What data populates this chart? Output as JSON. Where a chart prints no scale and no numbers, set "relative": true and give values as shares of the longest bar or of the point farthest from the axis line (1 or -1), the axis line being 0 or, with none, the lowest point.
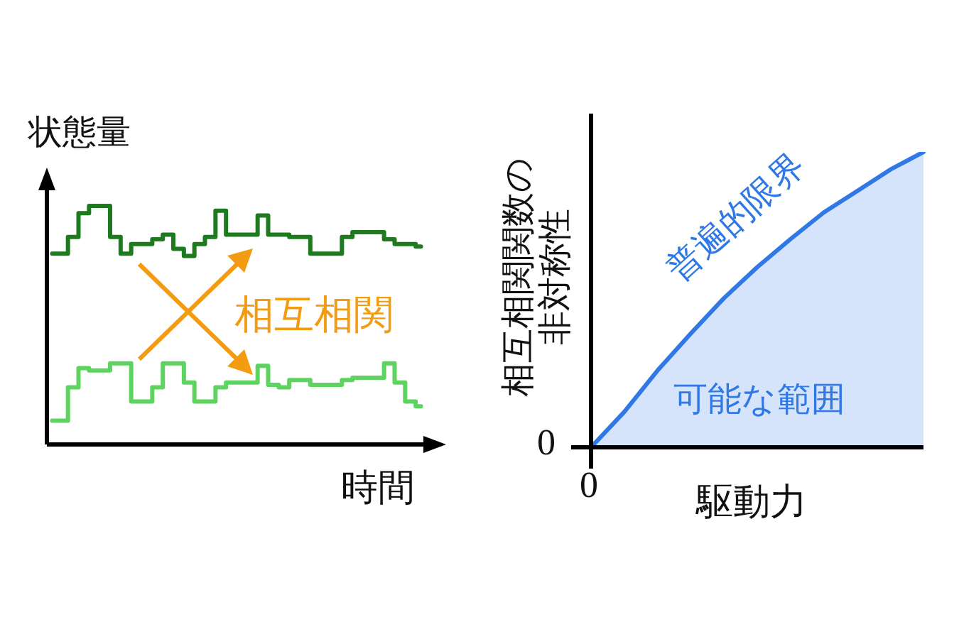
{
  "chart_data": [
    {
      "type": "step",
      "relative": true,
      "xlabel": "時間",
      "ylabel": "状態量",
      "categories": [
        null,
        null,
        null,
        null,
        null,
        null,
        null,
        null,
        null,
        null,
        null,
        null,
        null,
        null,
        null,
        null,
        null,
        null,
        null,
        null,
        null,
        null,
        null,
        null,
        null,
        null,
        null,
        null,
        null,
        null,
        null,
        null,
        null,
        null,
        null,
        null
      ],
      "series": [
        {
          "color": "#1e7a1e",
          "values": [
            0.8,
            0.8,
            0.87,
            0.97,
            1,
            1,
            0.87,
            0.8,
            0.84,
            0.84,
            0.86,
            0.88,
            0.82,
            0.79,
            0.84,
            0.87,
            0.98,
            0.88,
            0.88,
            0.88,
            0.96,
            0.88,
            0.88,
            0.87,
            0.87,
            0.8,
            0.8,
            0.8,
            0.87,
            0.89,
            0.89,
            0.89,
            0.86,
            0.84,
            0.84,
            0.83
          ]
        },
        {
          "color": "#5fd35f",
          "values": [
            0.1,
            0.1,
            0.24,
            0.32,
            0.31,
            0.31,
            0.34,
            0.34,
            0.18,
            0.18,
            0.24,
            0.34,
            0.34,
            0.26,
            0.18,
            0.18,
            0.24,
            0.26,
            0.26,
            0.26,
            0.33,
            0.25,
            0.24,
            0.27,
            0.27,
            0.25,
            0.25,
            0.25,
            0.27,
            0.28,
            0.28,
            0.28,
            0.34,
            0.26,
            0.18,
            0.16
          ]
        }
      ],
      "annotations": [
        "相互相関"
      ],
      "legend": false,
      "marker": "none"
    },
    {
      "type": "area",
      "relative": true,
      "xlabel": "駆動力",
      "ylabel": "相互相関関数の非対称性",
      "categories": [
        null,
        null,
        null,
        null,
        null,
        null,
        null,
        null,
        null,
        null,
        null
      ],
      "series": [
        {
          "color": "#2f78e6",
          "values": [
            0,
            0.12,
            0.26,
            0.385,
            0.505,
            0.61,
            0.705,
            0.795,
            0.867,
            0.94,
            1
          ]
        }
      ],
      "annotations": [
        "0",
        "0",
        "普遍的限界",
        "可能な範囲"
      ],
      "legend": false,
      "marker": "none"
    }
  ]
}
